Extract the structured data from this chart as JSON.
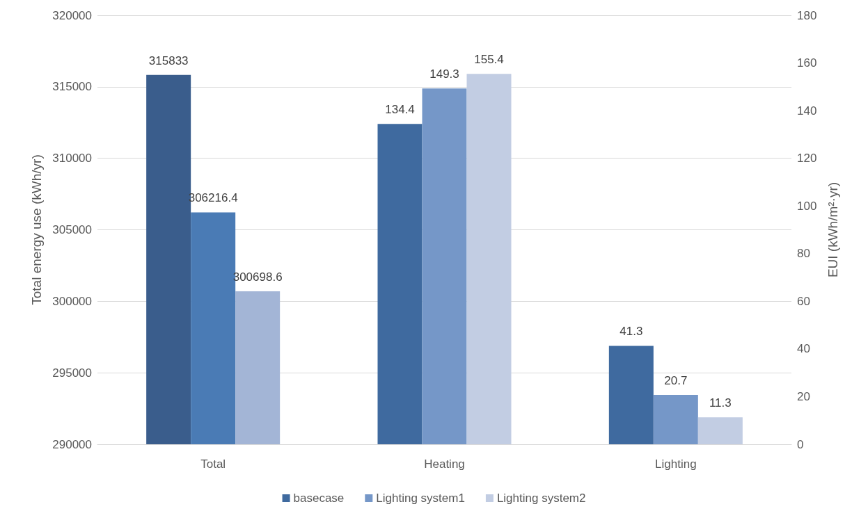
{
  "chart_data": {
    "type": "bar",
    "categories": [
      "Total",
      "Heating",
      "Lighting"
    ],
    "ylabel": "Total energy use (kWh/yr)",
    "y2label": "EUI (kWh/m²·yr)",
    "ylim": [
      290000,
      320000
    ],
    "yticks": [
      290000,
      295000,
      300000,
      305000,
      310000,
      315000,
      320000
    ],
    "y2lim": [
      0,
      180
    ],
    "y2ticks": [
      0,
      20,
      40,
      60,
      80,
      100,
      120,
      140,
      160,
      180
    ],
    "series": [
      {
        "name": "basecase",
        "color": "#3f6a9f",
        "axis": "y2",
        "values": [
          null,
          134.4,
          41.3
        ]
      },
      {
        "name": "Lighting system1",
        "color": "#7597c8",
        "axis": "y2",
        "values": [
          null,
          149.3,
          20.7
        ]
      },
      {
        "name": "Lighting system2",
        "color": "#c2cde3",
        "axis": "y2",
        "values": [
          null,
          155.4,
          11.3
        ]
      },
      {
        "color": "#3a5d8c",
        "axis": "y",
        "values": [
          315833,
          null,
          null
        ]
      },
      {
        "color": "#4a7bb5",
        "axis": "y",
        "values": [
          306216.4,
          null,
          null
        ]
      },
      {
        "color": "#a3b5d6",
        "axis": "y",
        "values": [
          300698.6,
          null,
          null
        ]
      }
    ],
    "data_labels": true,
    "grid": "y",
    "legend": "bottom"
  }
}
